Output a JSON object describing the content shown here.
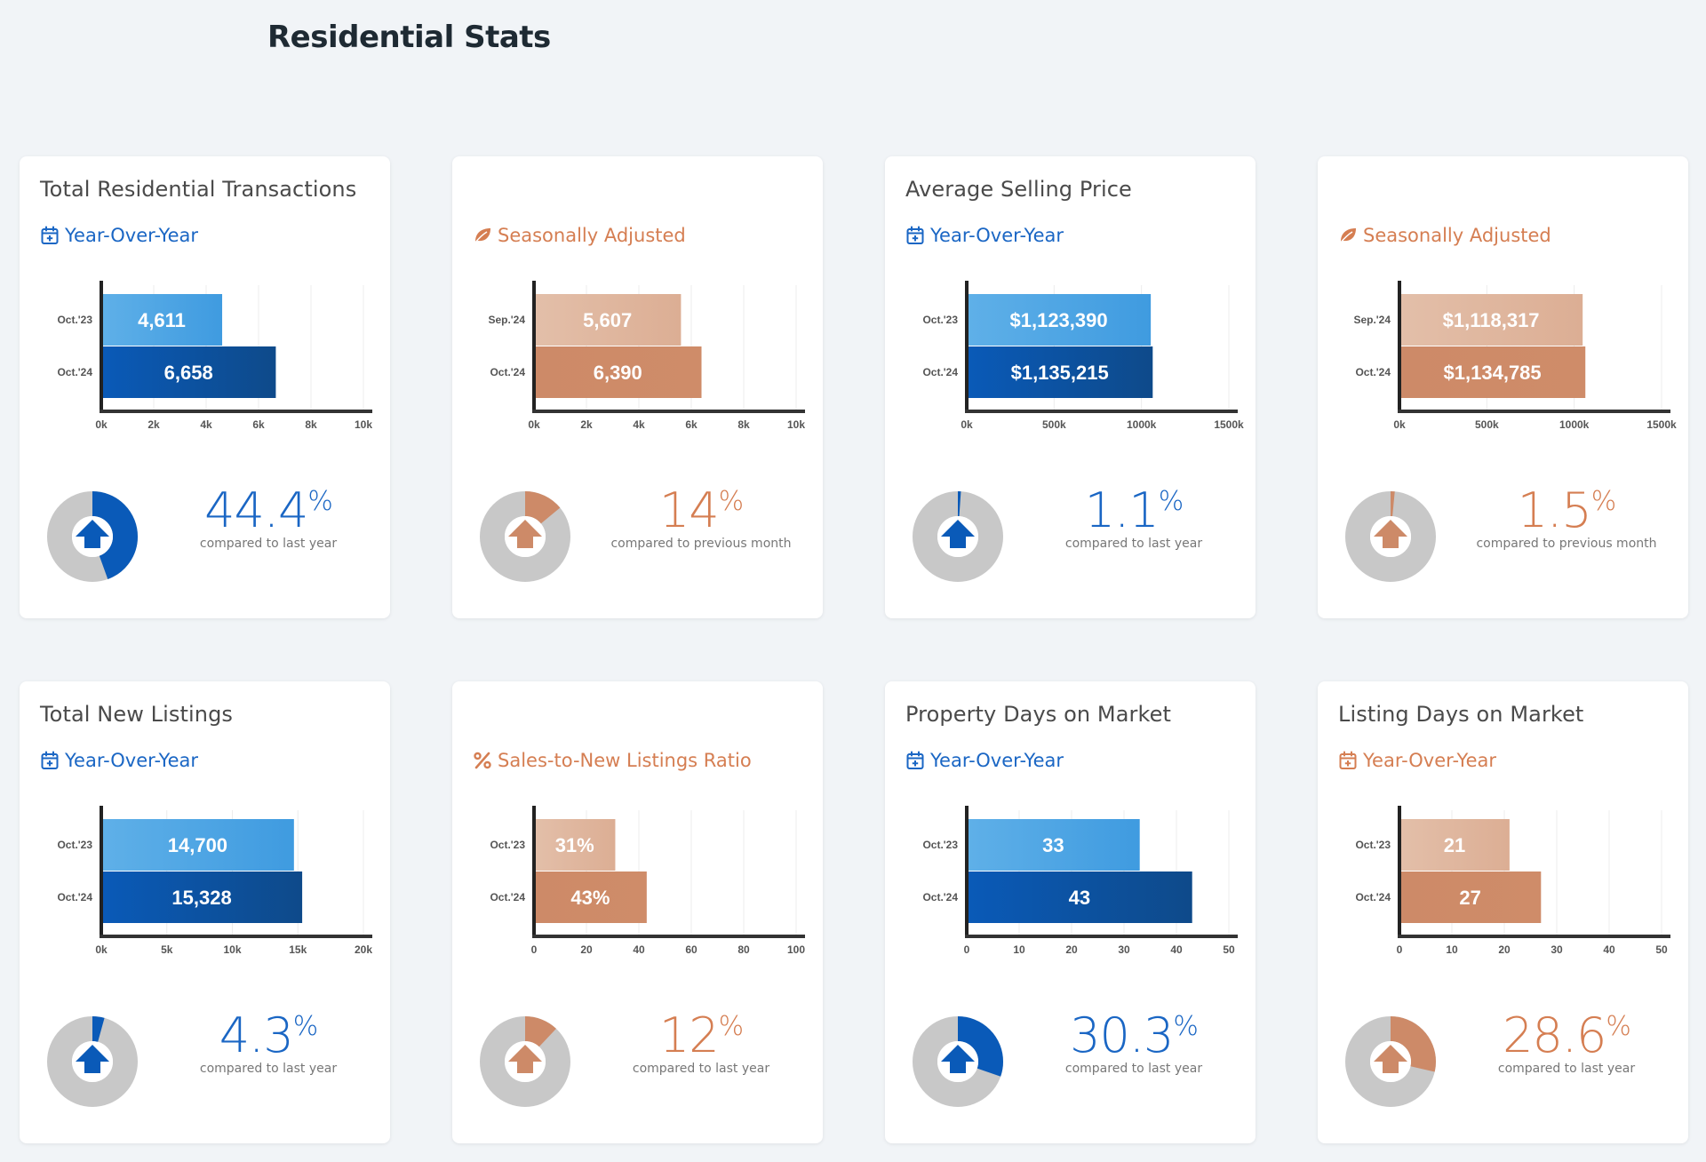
{
  "page_title": "Residential Stats",
  "colors": {
    "blue_light": "#5fb0e8",
    "blue_dark": "#0a5ab8",
    "orange_light": "#e3bfa9",
    "orange_dark": "#cd8a68",
    "blue_text": "#1a66c4",
    "orange_text": "#d57e52",
    "donut_track": "#c8c8c8"
  },
  "cards": [
    {
      "title": "Total Residential Transactions",
      "subtitle": "Year-Over-Year",
      "subtitle_icon": "calendar-plus-icon",
      "theme": "blue",
      "percent": "44.4",
      "percent_fraction": 0.444,
      "caption": "compared to last year",
      "chart_data": {
        "type": "bar",
        "orientation": "horizontal",
        "categories": [
          "Oct.'23",
          "Oct.'24"
        ],
        "values": [
          4611,
          6658
        ],
        "value_labels": [
          "4,611",
          "6,658"
        ],
        "xlim": [
          0,
          10000
        ],
        "xticks": [
          "0k",
          "2k",
          "4k",
          "6k",
          "8k",
          "10k"
        ],
        "grid": true
      }
    },
    {
      "title": "",
      "subtitle": "Seasonally Adjusted",
      "subtitle_icon": "leaf-icon",
      "theme": "orange",
      "percent": "14",
      "percent_fraction": 0.14,
      "caption": "compared to previous month",
      "chart_data": {
        "type": "bar",
        "orientation": "horizontal",
        "categories": [
          "Sep.'24",
          "Oct.'24"
        ],
        "values": [
          5607,
          6390
        ],
        "value_labels": [
          "5,607",
          "6,390"
        ],
        "xlim": [
          0,
          10000
        ],
        "xticks": [
          "0k",
          "2k",
          "4k",
          "6k",
          "8k",
          "10k"
        ],
        "grid": true
      }
    },
    {
      "title": "Average Selling Price",
      "subtitle": "Year-Over-Year",
      "subtitle_icon": "calendar-plus-icon",
      "theme": "blue",
      "percent": "1.1",
      "percent_fraction": 0.011,
      "caption": "compared to last year",
      "chart_data": {
        "type": "bar",
        "orientation": "horizontal",
        "categories": [
          "Oct.'23",
          "Oct.'24"
        ],
        "values": [
          1123390,
          1135215
        ],
        "value_labels": [
          "$1,123,390",
          "$1,135,215"
        ],
        "xlim": [
          0,
          1600000
        ],
        "xticks": [
          "0k",
          "500k",
          "1000k",
          "1500k"
        ],
        "grid": true
      }
    },
    {
      "title": "",
      "subtitle": "Seasonally Adjusted",
      "subtitle_icon": "leaf-icon",
      "theme": "orange",
      "percent": "1.5",
      "percent_fraction": 0.015,
      "caption": "compared to previous month",
      "chart_data": {
        "type": "bar",
        "orientation": "horizontal",
        "categories": [
          "Sep.'24",
          "Oct.'24"
        ],
        "values": [
          1118317,
          1134785
        ],
        "value_labels": [
          "$1,118,317",
          "$1,134,785"
        ],
        "xlim": [
          0,
          1600000
        ],
        "xticks": [
          "0k",
          "500k",
          "1000k",
          "1500k"
        ],
        "grid": true
      }
    },
    {
      "title": "Total New Listings",
      "subtitle": "Year-Over-Year",
      "subtitle_icon": "calendar-plus-icon",
      "theme": "blue",
      "percent": "4.3",
      "percent_fraction": 0.043,
      "caption": "compared to last year",
      "chart_data": {
        "type": "bar",
        "orientation": "horizontal",
        "categories": [
          "Oct.'23",
          "Oct.'24"
        ],
        "values": [
          14700,
          15328
        ],
        "value_labels": [
          "14,700",
          "15,328"
        ],
        "xlim": [
          0,
          20000
        ],
        "xticks": [
          "0k",
          "5k",
          "10k",
          "15k",
          "20k"
        ],
        "grid": true
      }
    },
    {
      "title": "",
      "subtitle": "Sales-to-New Listings Ratio",
      "subtitle_icon": "percent-icon",
      "theme": "orange",
      "percent": "12",
      "percent_fraction": 0.12,
      "caption": "compared to last year",
      "chart_data": {
        "type": "bar",
        "orientation": "horizontal",
        "categories": [
          "Oct.'23",
          "Oct.'24"
        ],
        "values": [
          31,
          43
        ],
        "value_labels": [
          "31%",
          "43%"
        ],
        "xlim": [
          0,
          100
        ],
        "xticks": [
          "0",
          "20",
          "40",
          "60",
          "80",
          "100"
        ],
        "grid": true
      }
    },
    {
      "title": "Property Days on Market",
      "subtitle": "Year-Over-Year",
      "subtitle_icon": "calendar-plus-icon",
      "theme": "blue",
      "percent": "30.3",
      "percent_fraction": 0.303,
      "caption": "compared to last year",
      "chart_data": {
        "type": "bar",
        "orientation": "horizontal",
        "categories": [
          "Oct.'23",
          "Oct.'24"
        ],
        "values": [
          33,
          43
        ],
        "value_labels": [
          "33",
          "43"
        ],
        "xlim": [
          0,
          50
        ],
        "xticks": [
          "0",
          "10",
          "20",
          "30",
          "40",
          "50"
        ],
        "grid": true
      }
    },
    {
      "title": "Listing Days on Market",
      "subtitle": "Year-Over-Year",
      "subtitle_icon": "calendar-plus-icon",
      "theme": "orange",
      "percent": "28.6",
      "percent_fraction": 0.286,
      "caption": "compared to last year",
      "chart_data": {
        "type": "bar",
        "orientation": "horizontal",
        "categories": [
          "Oct.'23",
          "Oct.'24"
        ],
        "values": [
          21,
          27
        ],
        "value_labels": [
          "21",
          "27"
        ],
        "xlim": [
          0,
          50
        ],
        "xticks": [
          "0",
          "10",
          "20",
          "30",
          "40",
          "50"
        ],
        "grid": true
      }
    }
  ]
}
